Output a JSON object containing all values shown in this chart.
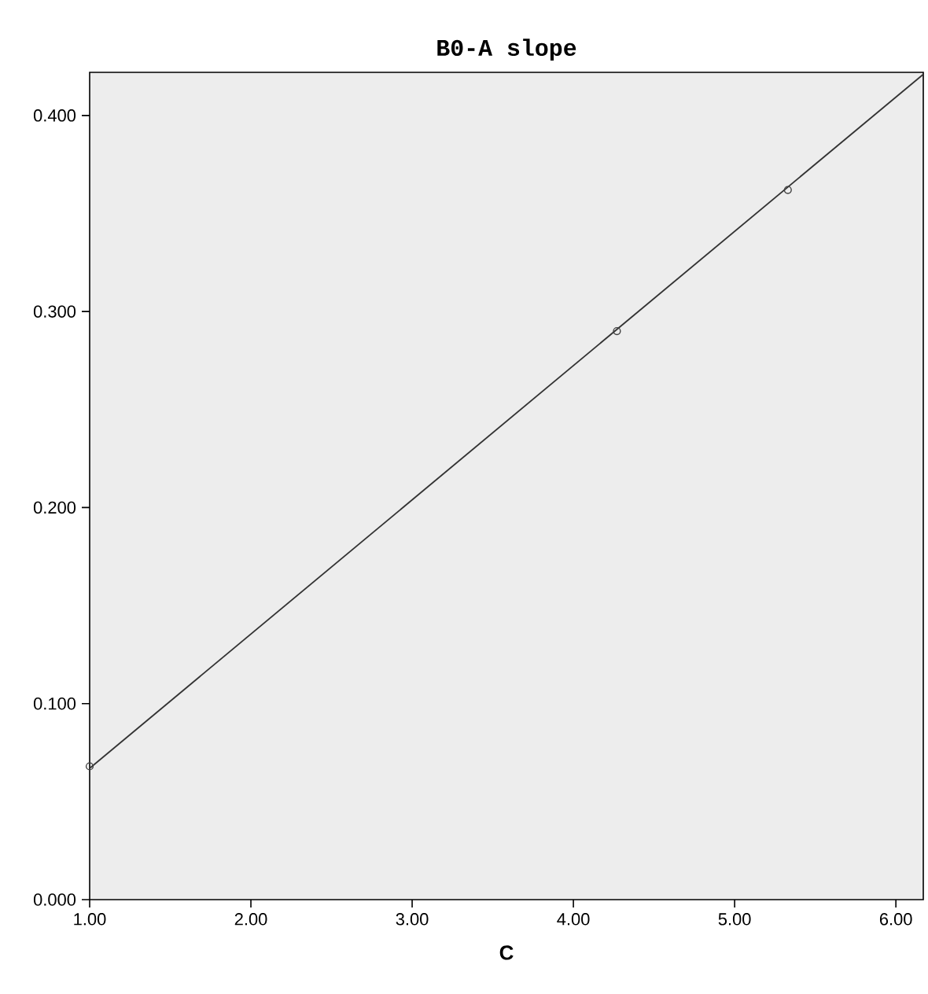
{
  "chart_data": {
    "type": "scatter",
    "title": "B0-A slope",
    "xlabel": "C",
    "series": [
      {
        "color": "#404040",
        "marker": "circle",
        "x": [
          1.0,
          4.27,
          5.33
        ],
        "values": [
          0.068,
          0.29,
          0.362
        ]
      },
      {
        "type": "line",
        "color": "#333333",
        "marker": "none",
        "line_style": "solid",
        "x": [
          1.0,
          6.17
        ],
        "values": [
          0.067,
          0.421
        ]
      }
    ],
    "xlim": [
      1.0,
      6.17
    ],
    "ylim": [
      0.0,
      0.422
    ],
    "xticks": [
      {
        "value": 1,
        "label": "1.00"
      },
      {
        "value": 2,
        "label": "2.00"
      },
      {
        "value": 3,
        "label": "3.00"
      },
      {
        "value": 4,
        "label": "4.00"
      },
      {
        "value": 5,
        "label": "5.00"
      },
      {
        "value": 6,
        "label": "6.00"
      }
    ],
    "yticks": [
      {
        "value": 0,
        "label": "0.000"
      },
      {
        "value": 0.1,
        "label": "0.100"
      },
      {
        "value": 0.2,
        "label": "0.200"
      },
      {
        "value": 0.3,
        "label": "0.300"
      },
      {
        "value": 0.4,
        "label": "0.400"
      }
    ],
    "grid": false
  }
}
